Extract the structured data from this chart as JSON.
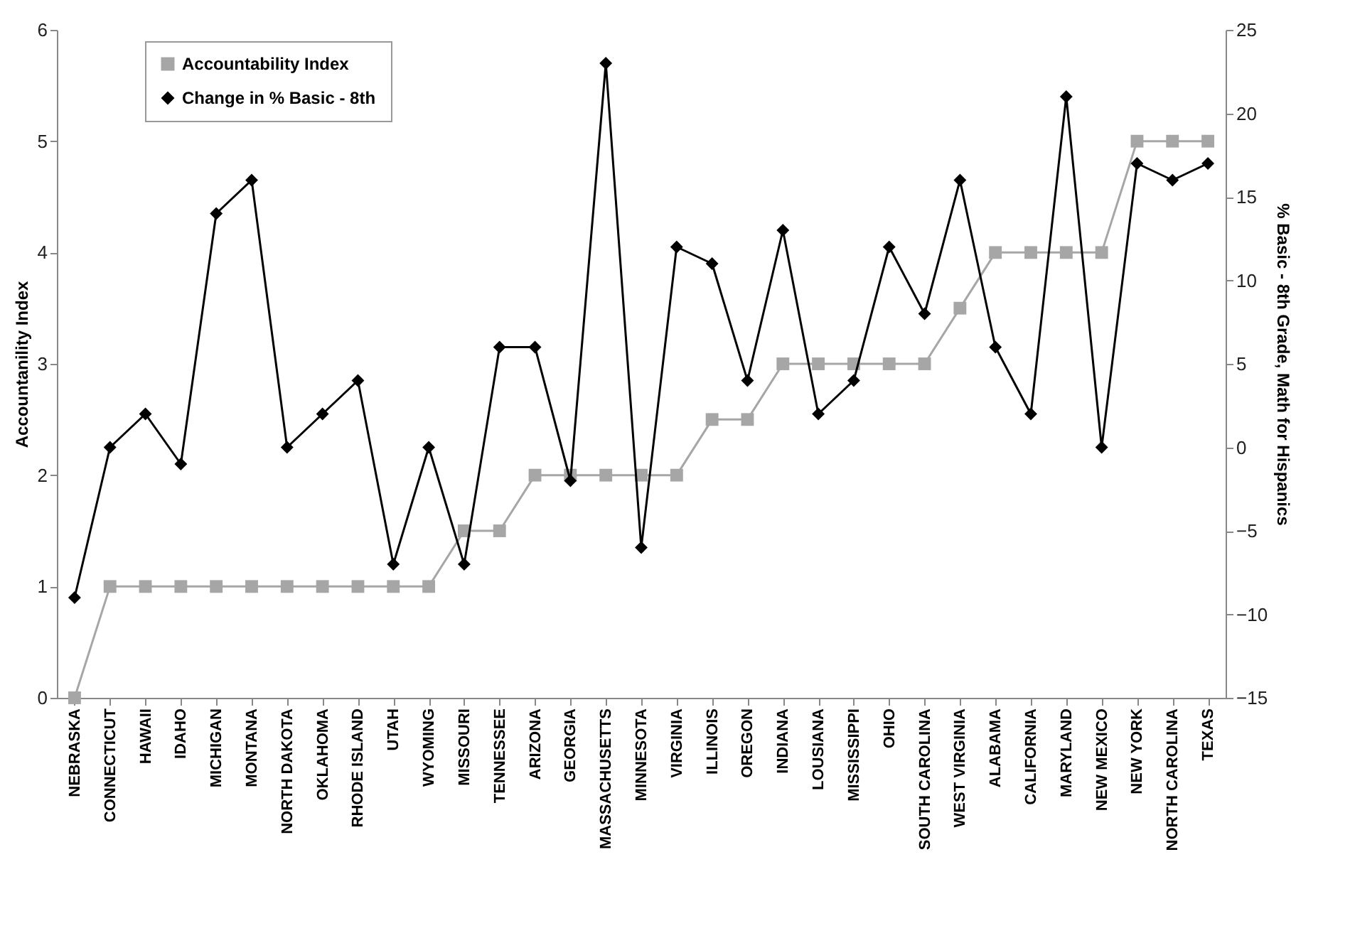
{
  "chart_data": {
    "type": "line",
    "ylabel": "Accountanility Index",
    "y2label": "% Basic - 8th Grade, Math for Hispanics",
    "categories": [
      "NEBRASKA",
      "CONNECTICUT",
      "HAWAII",
      "IDAHO",
      "MICHIGAN",
      "MONTANA",
      "NORTH DAKOTA",
      "OKLAHOMA",
      "RHODE ISLAND",
      "UTAH",
      "WYOMING",
      "MISSOURI",
      "TENNESSEE",
      "ARIZONA",
      "GEORGIA",
      "MASSACHUSETTS",
      "MINNESOTA",
      "VIRGINIA",
      "ILLINOIS",
      "OREGON",
      "INDIANA",
      "LOUSIANA",
      "MISSISSIPPI",
      "OHIO",
      "SOUTH CAROLINA",
      "WEST VIRGINIA",
      "ALABAMA",
      "CALIFORNIA",
      "MARYLAND",
      "NEW MEXICO",
      "NEW YORK",
      "NORTH CAROLINA",
      "TEXAS"
    ],
    "series": [
      {
        "name": "Accountability Index",
        "color": "#a6a6a6",
        "marker": "square",
        "values": [
          0,
          1,
          1,
          1,
          1,
          1,
          1,
          1,
          1,
          1,
          1,
          1.5,
          1.5,
          2,
          2,
          2,
          2,
          2,
          2.5,
          2.5,
          3,
          3,
          3,
          3,
          3,
          3.5,
          4,
          4,
          4,
          4,
          5,
          5,
          5
        ]
      },
      {
        "name": "Change in % Basic - 8th",
        "color": "#000000",
        "marker": "diamond",
        "axis": "y2",
        "values": [
          -9,
          0,
          2,
          -1,
          14,
          16,
          0,
          2,
          4,
          -7,
          0,
          -7,
          6,
          6,
          -2,
          23,
          -6,
          12,
          11,
          4,
          13,
          2,
          4,
          12,
          8,
          16,
          6,
          2,
          21,
          0,
          17,
          16,
          17
        ]
      }
    ],
    "ylim": [
      0,
      6
    ],
    "yticks": [
      0,
      1,
      2,
      3,
      4,
      5,
      6
    ],
    "y2lim": [
      -15,
      25
    ],
    "y2ticks": [
      -15,
      -10,
      -5,
      0,
      5,
      10,
      15,
      20,
      25
    ],
    "grid": false,
    "legend": "top left",
    "line_style": "solid"
  }
}
